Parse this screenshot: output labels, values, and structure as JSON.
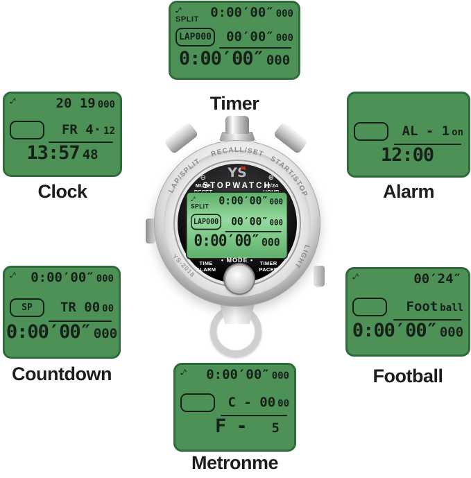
{
  "colors": {
    "page_bg": "#ffffff",
    "lcd_green": "#4d9156",
    "lcd_border": "#2f6b3a",
    "digit_dark": "#16211a",
    "label_text": "#1d1d1d",
    "logo_red": "#c22a1e"
  },
  "displays": {
    "timer": {
      "label": "Timer",
      "icon": "♪",
      "row1_label": "SPLIT",
      "row1_digits": "0:00′00″",
      "row1_small": "000",
      "row2_box": "LAP000",
      "row2_digits": "00′00″",
      "row2_small": "000",
      "row3_digits": "0:00′00″",
      "row3_small": "000"
    },
    "clock": {
      "label": "Clock",
      "icon": "♪",
      "row1_label": "",
      "row1_digits": "20 19",
      "row1_small": "000",
      "row2_box": "",
      "row2_digits": "FR 4·",
      "row2_small": "12",
      "row3_digits": "13:57",
      "row3_small": "48"
    },
    "alarm": {
      "label": "Alarm",
      "icon": "",
      "row1_label": "",
      "row1_digits": "",
      "row1_small": "",
      "row2_box": "",
      "row2_digits": "AL - 1",
      "row2_small": "on",
      "row3_digits": "12:00",
      "row3_small": ""
    },
    "countdown": {
      "label": "Countdown",
      "icon": "♪",
      "row1_label": "",
      "row1_digits": "0:00′00″",
      "row1_small": "000",
      "row2_box": "SP",
      "row2_digits": "TR 00",
      "row2_small": "00",
      "row3_digits": "0:00′00″",
      "row3_small": "000"
    },
    "football": {
      "label": "Football",
      "icon": "♪",
      "row1_label": "",
      "row1_digits": "00′24″",
      "row1_small": "",
      "row2_box": "",
      "row2_digits": "Foot",
      "row2_small": "ball",
      "row3_digits": "0:00′00″",
      "row3_small": "000"
    },
    "metronme": {
      "label": "Metronme",
      "icon": "♪",
      "row1_label": "",
      "row1_digits": "0:00′00″",
      "row1_small": "000",
      "row2_box": "",
      "row2_digits": "C - 00",
      "row2_small": "00",
      "row3_digits": "F -",
      "row3_small": "5"
    }
  },
  "watch": {
    "bezel": {
      "top": "RECALL/SET",
      "left": "LAP/SPLIT",
      "right": "START/STOP",
      "light": "LIGHT",
      "model": "YS-2018"
    },
    "face": {
      "logo": "YS",
      "brand": "STOPWATCH",
      "mute_icon": "⊖",
      "mute_line1": "MUTE",
      "mute_line2": "RESET",
      "hour_icon": "⊕",
      "hour_line1": "12/24",
      "hour_line2": "HOUR",
      "time_line1": "TIME",
      "time_line2": "ALARM",
      "mode": "• MODE •",
      "pacer_line1": "TIMER",
      "pacer_line2": "PACER"
    },
    "lcd": {
      "icon": "♪",
      "row1_label": "SPLIT",
      "row1_digits": "0:00′00″",
      "row1_small": "000",
      "row2_box": "LAP000",
      "row2_digits": "00′00″",
      "row2_small": "000",
      "row3_digits": "0:00′00″",
      "row3_small": "000"
    }
  }
}
